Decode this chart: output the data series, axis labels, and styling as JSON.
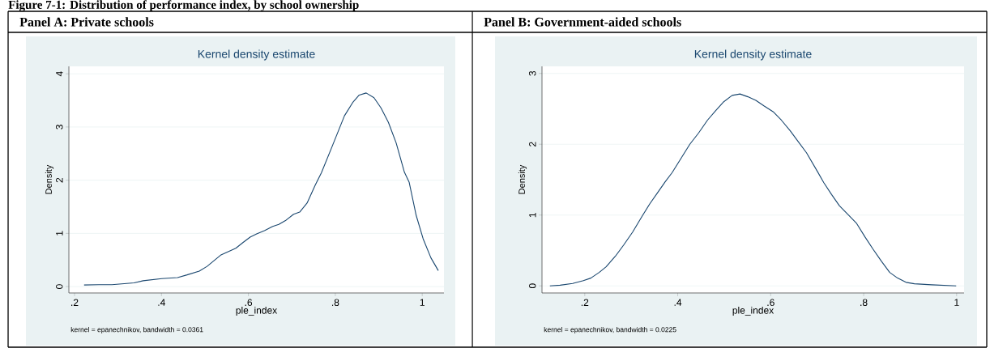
{
  "chart_data": [
    {
      "type": "line",
      "subtitle": "Panel A: Private schools",
      "title": "Kernel density estimate",
      "xlabel": "ple_index",
      "ylabel": "Density",
      "annotations": [
        "Figure 7-1:  Distribution of performance index, by school ownership",
        "kernel = epanechnikov, bandwidth = 0.0361"
      ],
      "series": [
        {
          "color": "#1a476f",
          "x": [
            0.222,
            0.256,
            0.286,
            0.337,
            0.358,
            0.401,
            0.437,
            0.459,
            0.487,
            0.505,
            0.536,
            0.571,
            0.588,
            0.604,
            0.619,
            0.637,
            0.656,
            0.67,
            0.687,
            0.704,
            0.718,
            0.735,
            0.754,
            0.768,
            0.792,
            0.821,
            0.84,
            0.855,
            0.871,
            0.889,
            0.905,
            0.922,
            0.94,
            0.959,
            0.97,
            0.986,
            1.002,
            1.02,
            1.037
          ],
          "values": [
            0.03,
            0.035,
            0.035,
            0.07,
            0.11,
            0.15,
            0.17,
            0.22,
            0.29,
            0.38,
            0.59,
            0.72,
            0.83,
            0.93,
            0.99,
            1.05,
            1.13,
            1.17,
            1.25,
            1.36,
            1.4,
            1.57,
            1.91,
            2.14,
            2.62,
            3.21,
            3.46,
            3.6,
            3.64,
            3.55,
            3.36,
            3.09,
            2.7,
            2.15,
            1.96,
            1.34,
            0.9,
            0.54,
            0.3
          ]
        }
      ],
      "xlim": [
        0.187,
        1.05
      ],
      "ylim": [
        -0.12,
        4.14
      ],
      "xticks": [
        {
          "value": 0.2,
          "label": ".2"
        },
        {
          "value": 0.4,
          "label": ".4"
        },
        {
          "value": 0.6,
          "label": ".6"
        },
        {
          "value": 0.8,
          "label": ".8"
        },
        1
      ],
      "yticks": [
        0,
        1,
        2,
        3,
        4
      ],
      "grid": "y"
    },
    {
      "type": "line",
      "subtitle": "Panel B: Government-aided schools",
      "title": "Kernel density estimate",
      "xlabel": "ple_index",
      "ylabel": "Density",
      "annotations": [
        "kernel = epanechnikov, bandwidth = 0.0225"
      ],
      "series": [
        {
          "color": "#1a476f",
          "x": [
            0.125,
            0.147,
            0.174,
            0.197,
            0.213,
            0.231,
            0.246,
            0.266,
            0.284,
            0.303,
            0.323,
            0.34,
            0.356,
            0.373,
            0.388,
            0.426,
            0.445,
            0.464,
            0.481,
            0.499,
            0.517,
            0.534,
            0.551,
            0.568,
            0.586,
            0.605,
            0.623,
            0.642,
            0.66,
            0.677,
            0.701,
            0.714,
            0.731,
            0.748,
            0.766,
            0.785,
            0.803,
            0.82,
            0.838,
            0.856,
            0.873,
            0.891,
            0.909,
            0.946,
            0.999
          ],
          "values": [
            0.0,
            0.01,
            0.035,
            0.075,
            0.11,
            0.19,
            0.27,
            0.42,
            0.58,
            0.76,
            0.98,
            1.16,
            1.31,
            1.47,
            1.6,
            2.0,
            2.16,
            2.34,
            2.47,
            2.6,
            2.69,
            2.71,
            2.67,
            2.62,
            2.54,
            2.46,
            2.34,
            2.19,
            2.03,
            1.88,
            1.61,
            1.46,
            1.29,
            1.13,
            1.01,
            0.88,
            0.69,
            0.52,
            0.35,
            0.19,
            0.11,
            0.05,
            0.03,
            0.015,
            0.0
          ]
        }
      ],
      "xlim": [
        0.108,
        1.016
      ],
      "ylim": [
        -0.1,
        3.1
      ],
      "xticks": [
        {
          "value": 0.2,
          "label": ".2"
        },
        {
          "value": 0.4,
          "label": ".4"
        },
        {
          "value": 0.6,
          "label": ".6"
        },
        {
          "value": 0.8,
          "label": ".8"
        },
        1
      ],
      "yticks": [
        0,
        1,
        2,
        3
      ],
      "grid": "y"
    }
  ]
}
